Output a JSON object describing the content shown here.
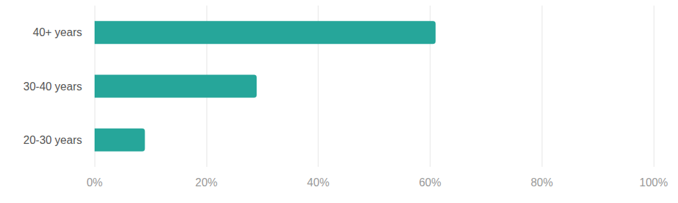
{
  "chart_data": {
    "type": "bar",
    "orientation": "horizontal",
    "categories": [
      "40+ years",
      "30-40 years",
      "20-30 years"
    ],
    "values": [
      61,
      29,
      9
    ],
    "color": "#26a69a",
    "xlim": [
      0,
      100
    ],
    "xticks": [
      {
        "value": 0,
        "label": "0%"
      },
      {
        "value": 20,
        "label": "20%"
      },
      {
        "value": 40,
        "label": "40%"
      },
      {
        "value": 60,
        "label": "60%"
      },
      {
        "value": 80,
        "label": "80%"
      },
      {
        "value": 100,
        "label": "100%"
      }
    ],
    "grid": true
  }
}
